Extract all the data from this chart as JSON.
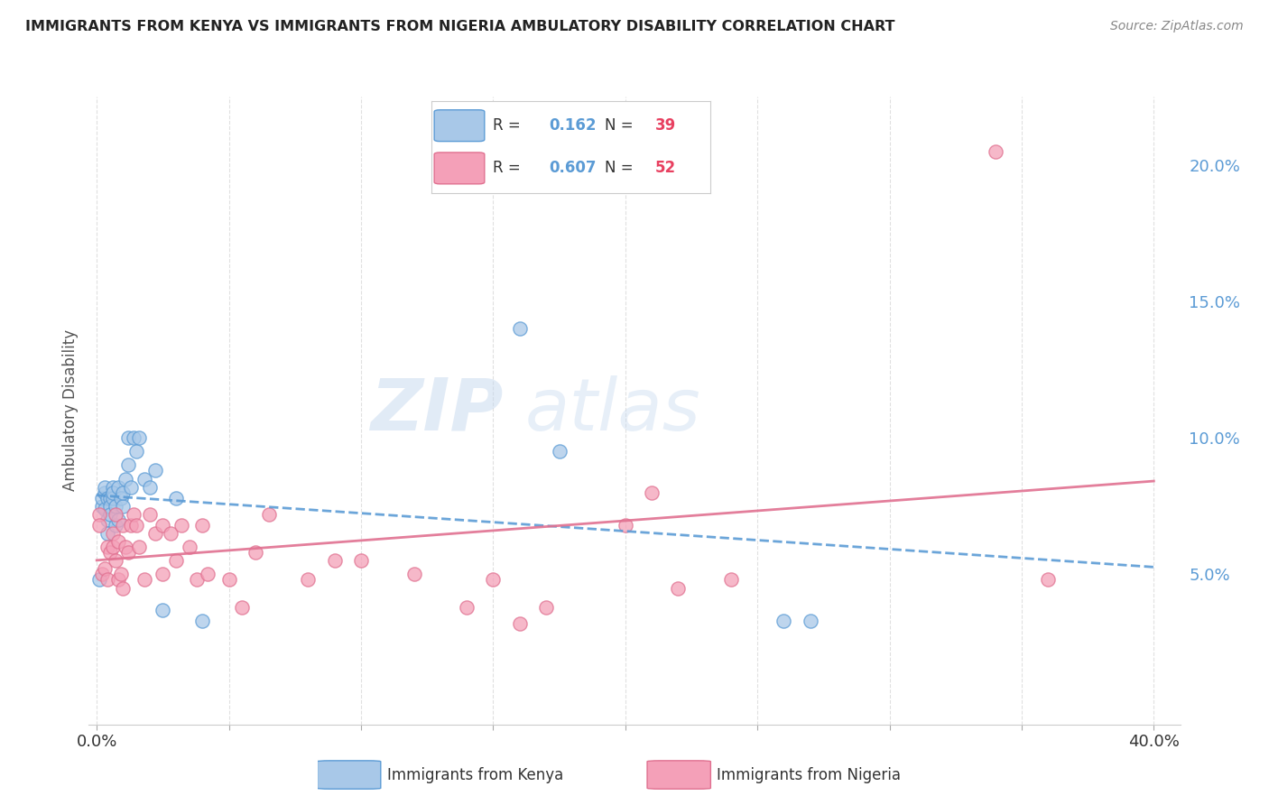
{
  "title": "IMMIGRANTS FROM KENYA VS IMMIGRANTS FROM NIGERIA AMBULATORY DISABILITY CORRELATION CHART",
  "source": "Source: ZipAtlas.com",
  "ylabel": "Ambulatory Disability",
  "watermark": "ZIPatlas",
  "legend1_r": "0.162",
  "legend1_n": "39",
  "legend2_r": "0.607",
  "legend2_n": "52",
  "kenya_label": "Immigrants from Kenya",
  "nigeria_label": "Immigrants from Nigeria",
  "xlim": [
    -0.003,
    0.41
  ],
  "ylim": [
    -0.005,
    0.225
  ],
  "xticks": [
    0.0,
    0.05,
    0.1,
    0.15,
    0.2,
    0.25,
    0.3,
    0.35,
    0.4
  ],
  "yticks_right": [
    0.05,
    0.1,
    0.15,
    0.2
  ],
  "ytick_labels_right": [
    "5.0%",
    "10.0%",
    "15.0%",
    "20.0%"
  ],
  "kenya_color": "#A8C8E8",
  "kenya_edge_color": "#5B9BD5",
  "nigeria_color": "#F4A0B8",
  "nigeria_edge_color": "#E07090",
  "kenya_line_color": "#5B9BD5",
  "nigeria_line_color": "#E07090",
  "kenya_x": [
    0.001,
    0.002,
    0.002,
    0.003,
    0.003,
    0.003,
    0.004,
    0.004,
    0.004,
    0.005,
    0.005,
    0.005,
    0.006,
    0.006,
    0.006,
    0.007,
    0.007,
    0.008,
    0.008,
    0.009,
    0.01,
    0.01,
    0.011,
    0.012,
    0.012,
    0.013,
    0.014,
    0.015,
    0.016,
    0.018,
    0.02,
    0.022,
    0.025,
    0.03,
    0.04,
    0.16,
    0.175,
    0.26,
    0.27
  ],
  "kenya_y": [
    0.048,
    0.075,
    0.078,
    0.08,
    0.082,
    0.074,
    0.07,
    0.078,
    0.065,
    0.078,
    0.075,
    0.072,
    0.082,
    0.078,
    0.08,
    0.075,
    0.068,
    0.082,
    0.07,
    0.078,
    0.075,
    0.08,
    0.085,
    0.1,
    0.09,
    0.082,
    0.1,
    0.095,
    0.1,
    0.085,
    0.082,
    0.088,
    0.037,
    0.078,
    0.033,
    0.14,
    0.095,
    0.033,
    0.033
  ],
  "nigeria_x": [
    0.001,
    0.001,
    0.002,
    0.003,
    0.004,
    0.004,
    0.005,
    0.006,
    0.006,
    0.007,
    0.007,
    0.008,
    0.008,
    0.009,
    0.01,
    0.01,
    0.011,
    0.012,
    0.013,
    0.014,
    0.015,
    0.016,
    0.018,
    0.02,
    0.022,
    0.025,
    0.025,
    0.028,
    0.03,
    0.032,
    0.035,
    0.038,
    0.04,
    0.042,
    0.05,
    0.055,
    0.06,
    0.065,
    0.08,
    0.09,
    0.1,
    0.12,
    0.14,
    0.15,
    0.16,
    0.17,
    0.2,
    0.21,
    0.22,
    0.24,
    0.34,
    0.36
  ],
  "nigeria_y": [
    0.072,
    0.068,
    0.05,
    0.052,
    0.06,
    0.048,
    0.058,
    0.065,
    0.06,
    0.072,
    0.055,
    0.048,
    0.062,
    0.05,
    0.068,
    0.045,
    0.06,
    0.058,
    0.068,
    0.072,
    0.068,
    0.06,
    0.048,
    0.072,
    0.065,
    0.068,
    0.05,
    0.065,
    0.055,
    0.068,
    0.06,
    0.048,
    0.068,
    0.05,
    0.048,
    0.038,
    0.058,
    0.072,
    0.048,
    0.055,
    0.055,
    0.05,
    0.038,
    0.048,
    0.032,
    0.038,
    0.068,
    0.08,
    0.045,
    0.048,
    0.205,
    0.048
  ],
  "background_color": "#ffffff",
  "grid_color": "#dddddd"
}
